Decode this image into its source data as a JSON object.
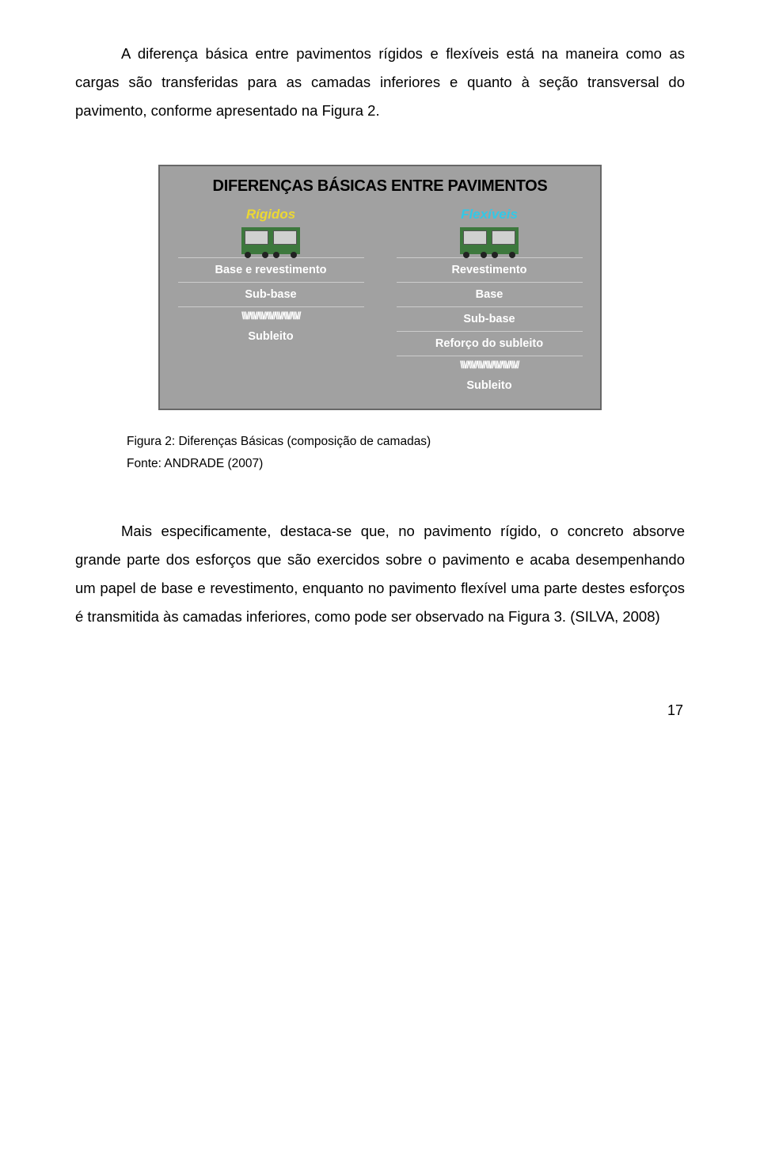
{
  "para1": "A diferença básica entre pavimentos rígidos e flexíveis está na maneira como as cargas são transferidas para as camadas inferiores e quanto à seção transversal do pavimento, conforme apresentado na Figura 2.",
  "figure": {
    "title": "DIFERENÇAS BÁSICAS ENTRE PAVIMENTOS",
    "border_color": "#686868",
    "background_color": "#a1a1a1",
    "title_color": "#000000",
    "hatch_pattern": "\\\\\\//\\\\\\//\\\\\\//\\\\\\//\\\\\\//\\\\\\//\\\\\\//",
    "left": {
      "header": "Rígidos",
      "header_color": "#ecd833",
      "layers": [
        "Base e revestimento",
        "Sub-base"
      ],
      "sublayer": "Subleito"
    },
    "right": {
      "header": "Flexíveis",
      "header_color": "#33c8e6",
      "layers": [
        "Revestimento",
        "Base",
        "Sub-base",
        "Reforço do subleito"
      ],
      "sublayer": "Subleito"
    },
    "layer_text_color": "#ffffff",
    "divider_color": "#cccccc",
    "truck_color": "#3d783d"
  },
  "caption_line1": "Figura 2: Diferenças Básicas (composição de camadas)",
  "caption_line2": "Fonte: ANDRADE (2007)",
  "para2": "Mais especificamente, destaca-se que, no pavimento rígido, o concreto absorve grande parte dos esforços que são exercidos sobre o pavimento e acaba desempenhando um papel de base e revestimento, enquanto no pavimento flexível uma parte destes esforços é transmitida às camadas inferiores, como pode ser observado na Figura 3. (SILVA, 2008)",
  "page_number": "17"
}
